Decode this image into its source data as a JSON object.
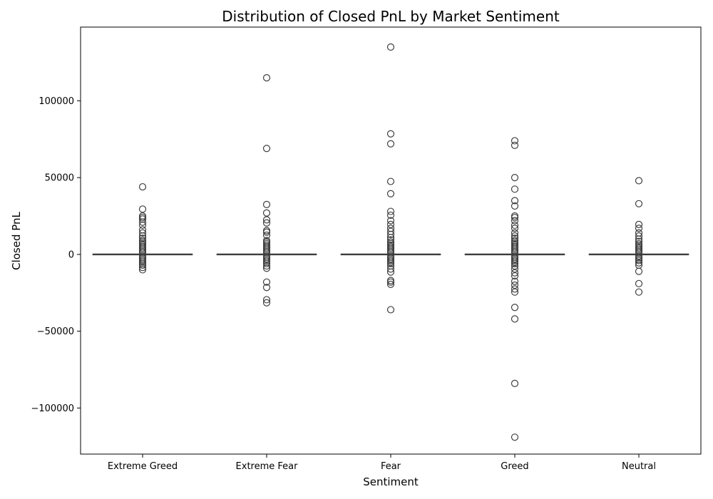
{
  "chart_data": {
    "type": "box",
    "title": "Distribution of Closed PnL by Market Sentiment",
    "xlabel": "Sentiment",
    "ylabel": "Closed PnL",
    "ylim": [
      -130000,
      148000
    ],
    "yticks": [
      100000,
      50000,
      0,
      -50000,
      -100000
    ],
    "ytick_labels": [
      "100000",
      "50000",
      "0",
      "−50000",
      "−100000"
    ],
    "grid": false,
    "categories": [
      "Extreme Greed",
      "Extreme Fear",
      "Fear",
      "Greed",
      "Neutral"
    ],
    "series": [
      {
        "category": "Extreme Greed",
        "box": {
          "whisker_low": 0,
          "q1": 0,
          "median": 0,
          "q3": 0,
          "whisker_high": 0
        },
        "outliers": [
          44000,
          29500,
          25000,
          24000,
          23000,
          21000,
          19000,
          16000,
          14000,
          12000,
          10500,
          9000,
          8000,
          7000,
          6000,
          5000,
          4000,
          3000,
          2000,
          1000,
          -1000,
          -2000,
          -3000,
          -4000,
          -5000,
          -6000,
          -7000,
          -8500,
          -10000
        ]
      },
      {
        "category": "Extreme Fear",
        "box": {
          "whisker_low": 0,
          "q1": 0,
          "median": 0,
          "q3": 0,
          "whisker_high": 0
        },
        "outliers": [
          115000,
          69000,
          32500,
          27000,
          22500,
          20500,
          15500,
          14500,
          12500,
          9000,
          8000,
          7000,
          6000,
          5000,
          4000,
          3000,
          2000,
          1000,
          -1000,
          -2000,
          -3000,
          -4000,
          -5000,
          -6000,
          -7500,
          -9000,
          -18000,
          -21500,
          -29500,
          -31500
        ]
      },
      {
        "category": "Fear",
        "box": {
          "whisker_low": 0,
          "q1": 0,
          "median": 0,
          "q3": 0,
          "whisker_high": 0
        },
        "outliers": [
          135000,
          78500,
          72000,
          47500,
          39500,
          28000,
          25500,
          22000,
          19500,
          17000,
          15000,
          13000,
          11000,
          9500,
          8000,
          7000,
          6000,
          5000,
          4000,
          3000,
          2000,
          1000,
          -1000,
          -2000,
          -3000,
          -4000,
          -5000,
          -6000,
          -7500,
          -9500,
          -11500,
          -17000,
          -18000,
          -19500,
          -36000
        ]
      },
      {
        "category": "Greed",
        "box": {
          "whisker_low": 0,
          "q1": 0,
          "median": 0,
          "q3": 0,
          "whisker_high": 0
        },
        "outliers": [
          74000,
          71000,
          50000,
          42500,
          35000,
          31500,
          25000,
          24000,
          22000,
          19000,
          17000,
          14000,
          12000,
          10500,
          9000,
          8000,
          7000,
          6000,
          5000,
          4000,
          3000,
          2000,
          1000,
          -1000,
          -2000,
          -3000,
          -4000,
          -5000,
          -6000,
          -7500,
          -9500,
          -12000,
          -14000,
          -17500,
          -20000,
          -22500,
          -24500,
          -34500,
          -42000,
          -84000,
          -119000
        ]
      },
      {
        "category": "Neutral",
        "box": {
          "whisker_low": 0,
          "q1": 0,
          "median": 0,
          "q3": 0,
          "whisker_high": 0
        },
        "outliers": [
          48000,
          33000,
          19500,
          17000,
          14000,
          12000,
          10000,
          8500,
          7000,
          6000,
          5000,
          4000,
          3000,
          2000,
          1000,
          -1000,
          -2000,
          -3000,
          -4000,
          -5500,
          -7000,
          -11000,
          -19000,
          -24500
        ]
      }
    ],
    "colors": {
      "box_line": "#3f3f3f",
      "outlier_edge": "#3f3f3f",
      "axes": "#000000"
    }
  }
}
